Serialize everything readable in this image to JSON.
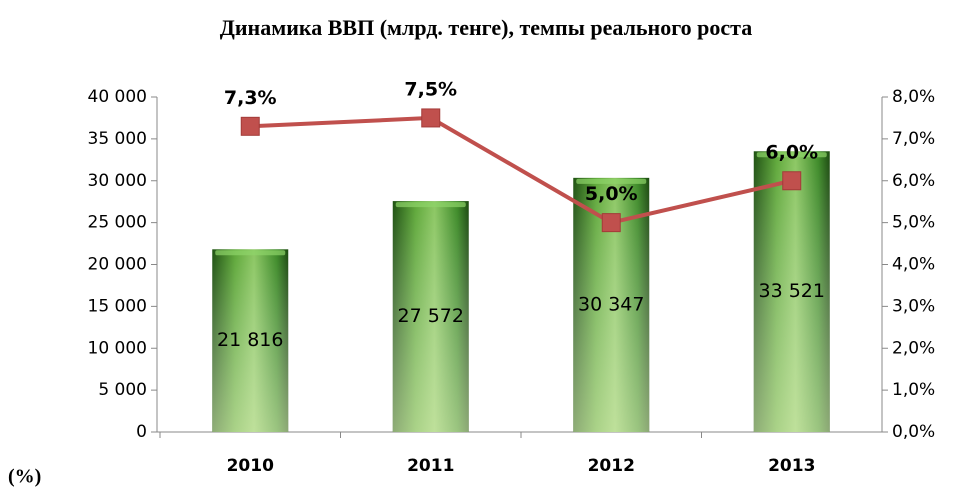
{
  "chart_data": {
    "type": "combo",
    "title": "Динамика ВВП (млрд. тенге), темпы реального роста",
    "annotation": "(%)",
    "categories": [
      "2010",
      "2011",
      "2012",
      "2013"
    ],
    "series": [
      {
        "type": "bar",
        "color": "#3f8a2a",
        "values": [
          21816,
          27572,
          30347,
          33521
        ],
        "value_labels": [
          "21 816",
          "27 572",
          "30 347",
          "33 521"
        ]
      },
      {
        "type": "line",
        "axis": "y2",
        "color": "#c0504d",
        "values": [
          7.3,
          7.5,
          5.0,
          6.0
        ],
        "value_labels": [
          "7,3%",
          "7,5%",
          "5,0%",
          "6,0%"
        ]
      }
    ],
    "ylim": [
      0,
      40000
    ],
    "yticks": [
      0,
      {
        "value": 5000,
        "label": "5 000"
      },
      {
        "value": 10000,
        "label": "10 000"
      },
      {
        "value": 15000,
        "label": "15 000"
      },
      {
        "value": 20000,
        "label": "20 000"
      },
      {
        "value": 25000,
        "label": "25 000"
      },
      {
        "value": 30000,
        "label": "30 000"
      },
      {
        "value": 35000,
        "label": "35 000"
      },
      {
        "value": 40000,
        "label": "40 000"
      }
    ],
    "y2lim": [
      0,
      8
    ],
    "y2ticks": [
      {
        "value": 0,
        "label": "0,0%"
      },
      {
        "value": 1,
        "label": "1,0%"
      },
      {
        "value": 2,
        "label": "2,0%"
      },
      {
        "value": 3,
        "label": "3,0%"
      },
      {
        "value": 4,
        "label": "4,0%"
      },
      {
        "value": 5,
        "label": "5,0%"
      },
      {
        "value": 6,
        "label": "6,0%"
      },
      {
        "value": 7,
        "label": "7,0%"
      },
      {
        "value": 8,
        "label": "8,0%"
      }
    ],
    "grid": false
  }
}
